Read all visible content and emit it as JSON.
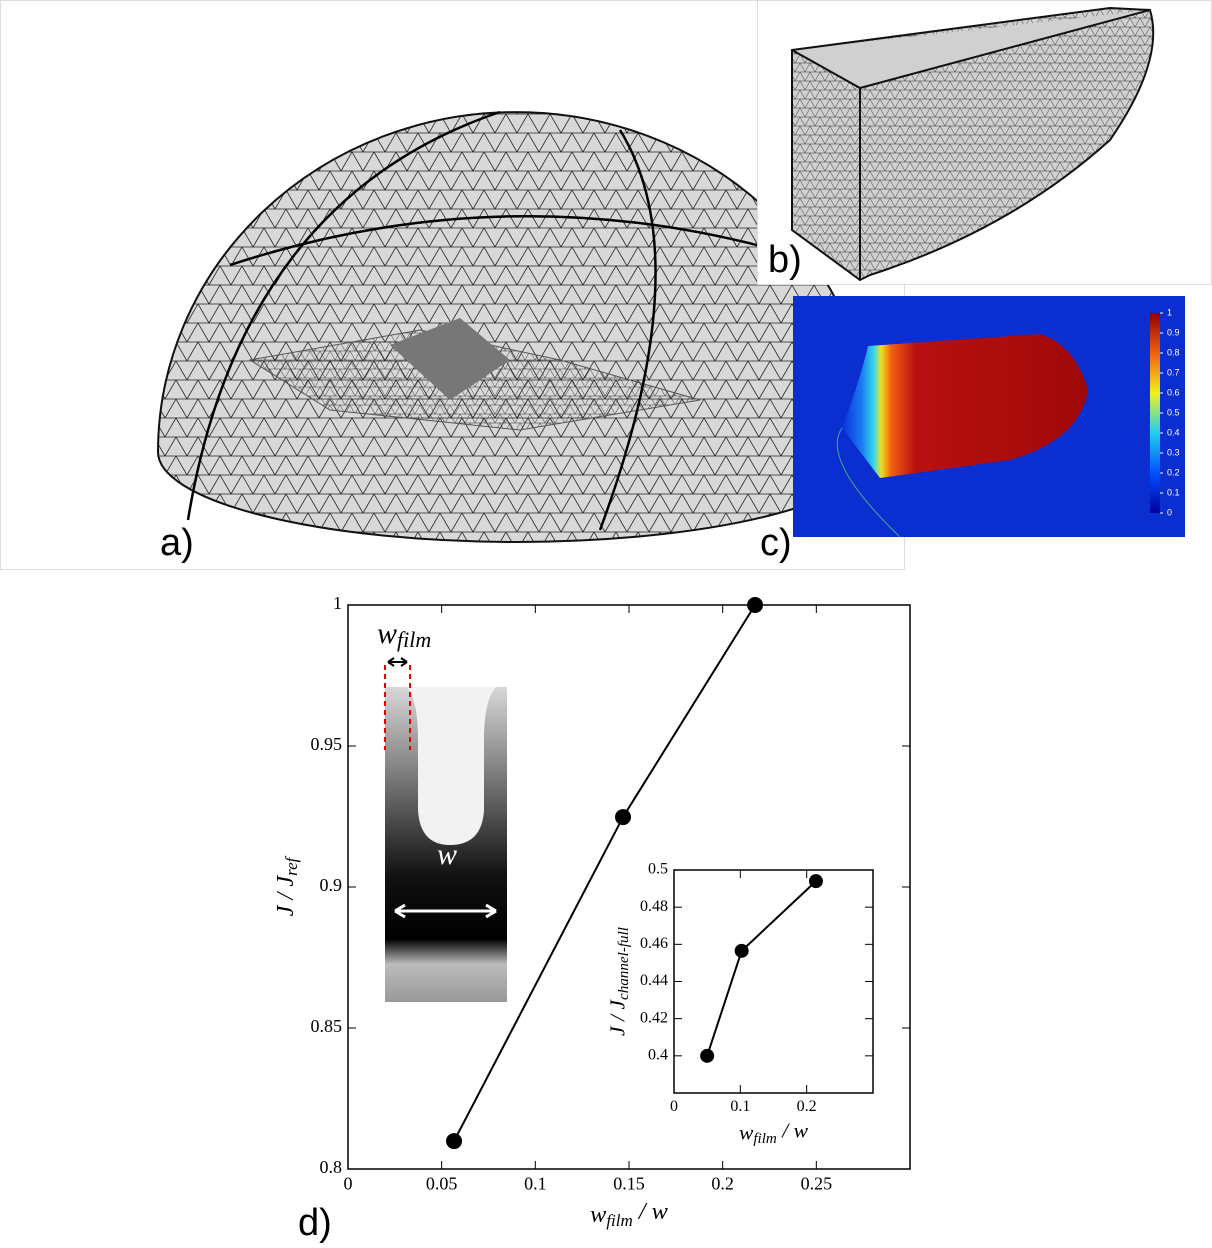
{
  "panels": {
    "a": "a)",
    "b": "b)",
    "c": "c)",
    "d": "d)"
  },
  "colorbar": {
    "lim": [
      0,
      1
    ],
    "ticks": [
      0,
      0.1,
      0.2,
      0.3,
      0.4,
      0.5,
      0.6,
      0.7,
      0.8,
      0.9,
      1
    ]
  },
  "chart_data": [
    {
      "type": "line",
      "xlabel": "w",
      "xlabel_sub": "film",
      "xlabel_tail": " / w",
      "ylabel": "J / J",
      "ylabel_sub": "ref",
      "x": [
        0.0566,
        0.1468,
        0.2173
      ],
      "values": [
        0.8099,
        0.9248,
        1.0
      ],
      "color": "#000000",
      "xlim": [
        0,
        0.3
      ],
      "xticks": [
        0,
        0.05,
        0.1,
        0.15,
        0.2,
        0.25
      ],
      "ylim": [
        0.8,
        1
      ],
      "yticks": [
        0.8,
        0.85,
        0.9,
        0.95,
        1
      ],
      "annotations": [
        {
          "text": "w",
          "sub": "film"
        },
        {
          "text": "w"
        }
      ]
    },
    {
      "type": "line",
      "xlabel": "w",
      "xlabel_sub": "film",
      "xlabel_tail": " / w",
      "ylabel": "J / J",
      "ylabel_sub": "channel-full",
      "x": [
        0.05,
        0.102,
        0.214
      ],
      "values": [
        0.4,
        0.4565,
        0.494
      ],
      "color": "#000000",
      "xlim": [
        0,
        0.3
      ],
      "xticks": [
        0,
        0.1,
        0.2
      ],
      "ylim": [
        0.38,
        0.5
      ],
      "yticks": [
        0.4,
        0.42,
        0.44,
        0.46,
        0.48,
        0.5
      ]
    }
  ]
}
